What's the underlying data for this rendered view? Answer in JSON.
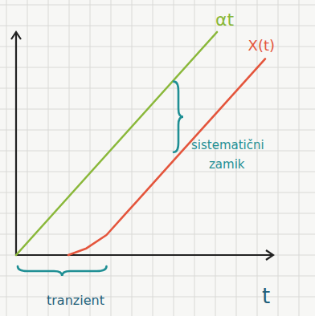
{
  "chart_data": {
    "type": "line",
    "x_label": "t",
    "tick_labels": false,
    "xlim": [
      0,
      12.8
    ],
    "ylim": [
      0,
      10
    ],
    "xticks": [],
    "yticks": [],
    "series": [
      {
        "name": "αt",
        "color": "#8ab83a",
        "x": [
          0,
          10
        ],
        "values": [
          0,
          10
        ]
      },
      {
        "name": "X(t)",
        "color": "#e4553c",
        "x": [
          2.6,
          3.5,
          4.5,
          5.5,
          6,
          8,
          10,
          12.4
        ],
        "values": [
          0,
          0.3,
          0.9,
          1.9,
          2.4,
          4.4,
          6.4,
          8.8
        ]
      }
    ],
    "annotations": [
      {
        "text": "sistematični zamik",
        "color": "#1f8f94"
      },
      {
        "text": "tranzient",
        "color": "#1f8f94"
      }
    ]
  }
}
